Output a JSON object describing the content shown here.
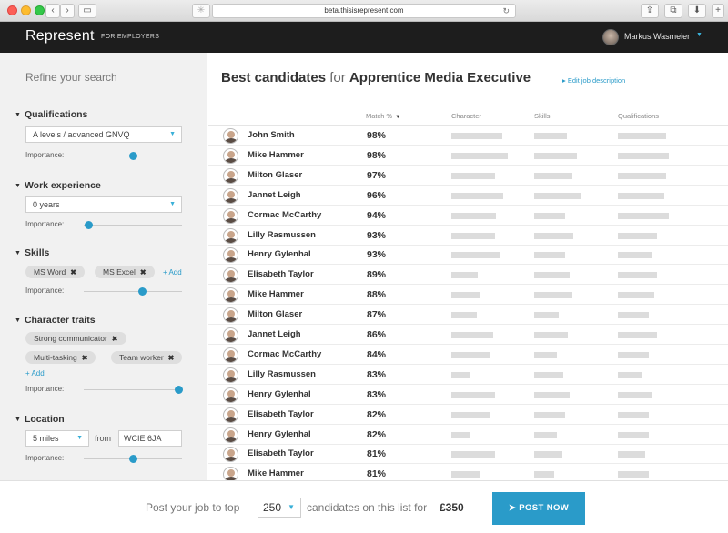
{
  "browser": {
    "url": "beta.thisisrepresent.com"
  },
  "app": {
    "logo": "Represent",
    "logo_sub": "FOR EMPLOYERS",
    "user_name": "Markus Wasmeier"
  },
  "sidebar": {
    "title": "Refine your search",
    "importance_label": "Importance:",
    "add_label": "+ Add",
    "qualifications": {
      "heading": "Qualifications",
      "selected": "A levels / advanced GNVQ",
      "importance": 0.5
    },
    "work_experience": {
      "heading": "Work experience",
      "selected": "0 years",
      "importance": 0.05
    },
    "skills": {
      "heading": "Skills",
      "tags": [
        "MS Word",
        "MS Excel"
      ],
      "importance": 0.6
    },
    "character_traits": {
      "heading": "Character traits",
      "tags": [
        "Strong communicator",
        "Multi-tasking",
        "Team worker"
      ],
      "importance": 0.97
    },
    "location": {
      "heading": "Location",
      "radius": "5 miles",
      "from_label": "from",
      "postcode": "WCIE 6JA",
      "importance": 0.5
    }
  },
  "main": {
    "title_bold1": "Best candidates",
    "title_mid": "for",
    "title_bold2": "Apprentice Media Executive",
    "edit_link": "Edit job description",
    "columns": {
      "match": "Match %",
      "character": "Character",
      "skills": "Skills",
      "qualifications": "Qualifications"
    },
    "candidates": [
      {
        "name": "John Smith",
        "match": "98%",
        "character": 0.8,
        "skills": 0.7,
        "qualifications": 0.85
      },
      {
        "name": "Mike Hammer",
        "match": "98%",
        "character": 0.88,
        "skills": 0.9,
        "qualifications": 0.9
      },
      {
        "name": "Milton Glaser",
        "match": "97%",
        "character": 0.68,
        "skills": 0.8,
        "qualifications": 0.85
      },
      {
        "name": "Jannet Leigh",
        "match": "96%",
        "character": 0.82,
        "skills": 1.0,
        "qualifications": 0.82
      },
      {
        "name": "Cormac McCarthy",
        "match": "94%",
        "character": 0.7,
        "skills": 0.65,
        "qualifications": 0.9
      },
      {
        "name": "Lilly Rasmussen",
        "match": "93%",
        "character": 0.68,
        "skills": 0.82,
        "qualifications": 0.7
      },
      {
        "name": "Henry Gylenhal",
        "match": "93%",
        "character": 0.75,
        "skills": 0.65,
        "qualifications": 0.6
      },
      {
        "name": "Elisabeth Taylor",
        "match": "89%",
        "character": 0.42,
        "skills": 0.75,
        "qualifications": 0.7
      },
      {
        "name": "Mike Hammer",
        "match": "88%",
        "character": 0.45,
        "skills": 0.8,
        "qualifications": 0.65
      },
      {
        "name": "Milton Glaser",
        "match": "87%",
        "character": 0.4,
        "skills": 0.52,
        "qualifications": 0.55
      },
      {
        "name": "Jannet Leigh",
        "match": "86%",
        "character": 0.65,
        "skills": 0.72,
        "qualifications": 0.7
      },
      {
        "name": "Cormac McCarthy",
        "match": "84%",
        "character": 0.62,
        "skills": 0.48,
        "qualifications": 0.55
      },
      {
        "name": "Lilly Rasmussen",
        "match": "83%",
        "character": 0.3,
        "skills": 0.62,
        "qualifications": 0.42
      },
      {
        "name": "Henry Gylenhal",
        "match": "83%",
        "character": 0.68,
        "skills": 0.75,
        "qualifications": 0.6
      },
      {
        "name": "Elisabeth Taylor",
        "match": "82%",
        "character": 0.62,
        "skills": 0.65,
        "qualifications": 0.55
      },
      {
        "name": "Henry Gylenhal",
        "match": "82%",
        "character": 0.3,
        "skills": 0.48,
        "qualifications": 0.55
      },
      {
        "name": "Elisabeth Taylor",
        "match": "81%",
        "character": 0.68,
        "skills": 0.6,
        "qualifications": 0.48
      },
      {
        "name": "Mike Hammer",
        "match": "81%",
        "character": 0.45,
        "skills": 0.42,
        "qualifications": 0.55
      }
    ]
  },
  "footer": {
    "text_before": "Post your job to top",
    "count": "250",
    "text_after": "candidates on this list for",
    "price": "£350",
    "button": "POST NOW"
  },
  "colors": {
    "accent": "#2a9bc9",
    "header_bg": "#1d1d1d",
    "bar": "#dcdcdc"
  }
}
